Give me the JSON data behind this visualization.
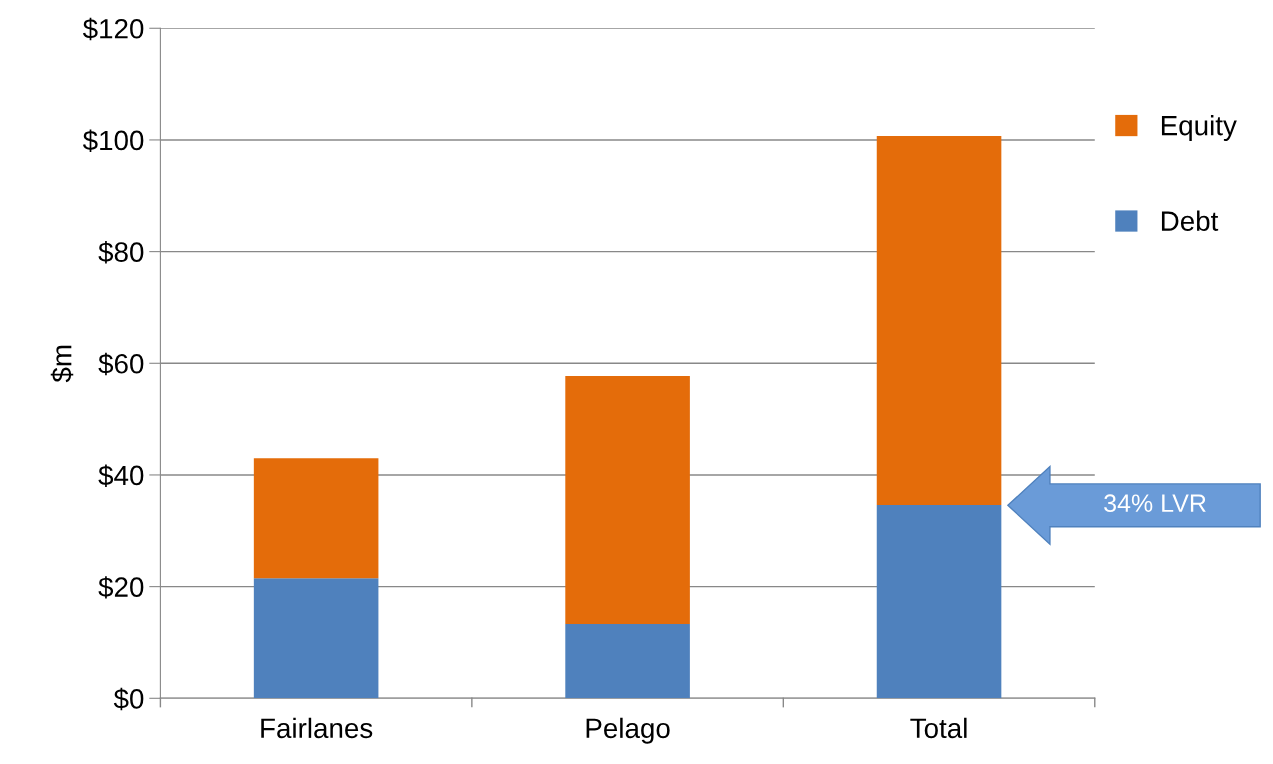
{
  "chart_data": {
    "type": "bar",
    "stacked": true,
    "ylabel": "$m",
    "categories": [
      "Fairlanes",
      "Pelago",
      "Total"
    ],
    "series": [
      {
        "name": "Debt",
        "color": "#4f81bd",
        "values": [
          21.5,
          13.3,
          34.6
        ]
      },
      {
        "name": "Equity",
        "color": "#e46c0a",
        "values": [
          21.5,
          44.4,
          66.1
        ]
      }
    ],
    "ylim": [
      0,
      120
    ],
    "yticks": [
      {
        "value": 0,
        "label": "$0"
      },
      {
        "value": 20,
        "label": "$20"
      },
      {
        "value": 40,
        "label": "$40"
      },
      {
        "value": 60,
        "label": "$60"
      },
      {
        "value": 80,
        "label": "$80"
      },
      {
        "value": 100,
        "label": "$100"
      },
      {
        "value": 120,
        "label": "$120"
      }
    ],
    "grid": "y",
    "legend": "right",
    "annotations": [
      "34% LVR"
    ]
  }
}
